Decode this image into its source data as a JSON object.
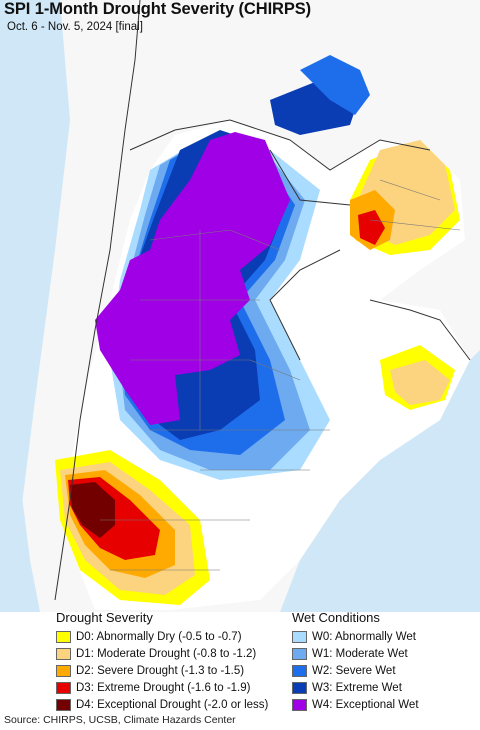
{
  "header": {
    "title": "SPI 1-Month Drought Severity (CHIRPS)",
    "subtitle": "Oct. 6 - Nov. 5, 2024 [final]"
  },
  "legend": {
    "drought": {
      "title": "Drought Severity",
      "items": [
        {
          "label": "D0: Abnormally Dry (-0.5 to -0.7)",
          "color": "#ffff00"
        },
        {
          "label": "D1: Moderate Drought (-0.8 to -1.2)",
          "color": "#fcd37f"
        },
        {
          "label": "D2: Severe Drought (-1.3 to -1.5)",
          "color": "#ffaa00"
        },
        {
          "label": "D3: Extreme Drought (-1.6 to -1.9)",
          "color": "#e60000"
        },
        {
          "label": "D4: Exceptional Drought (-2.0 or less)",
          "color": "#730000"
        }
      ]
    },
    "wet": {
      "title": "Wet Conditions",
      "items": [
        {
          "label": "W0: Abnormally Wet",
          "color": "#aadcff"
        },
        {
          "label": "W1: Moderate Wet",
          "color": "#6eaaf0"
        },
        {
          "label": "W2: Severe Wet",
          "color": "#1e6eeb"
        },
        {
          "label": "W3: Extreme Wet",
          "color": "#0a3cb4"
        },
        {
          "label": "W4: Exceptional Wet",
          "color": "#a000e6"
        }
      ]
    }
  },
  "source": "Source: CHIRPS, UCSB, Climate Hazards Center"
}
